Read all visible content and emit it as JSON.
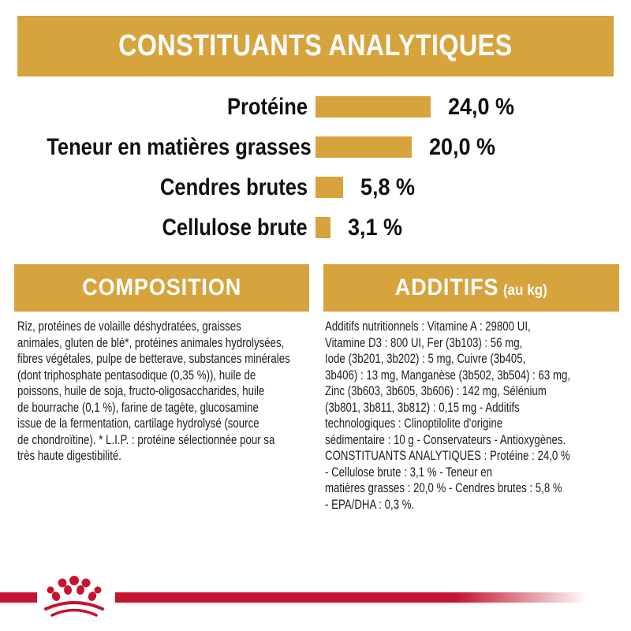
{
  "header": {
    "title": "CONSTITUANTS ANALYTIQUES"
  },
  "constituants": {
    "rows": [
      {
        "label": "Protéine",
        "value": "24,0 %",
        "percent": 24.0
      },
      {
        "label": "Teneur en matières grasses",
        "value": "20,0 %",
        "percent": 20.0
      },
      {
        "label": "Cendres brutes",
        "value": "5,8 %",
        "percent": 5.8
      },
      {
        "label": "Cellulose brute",
        "value": "3,1 %",
        "percent": 3.1
      }
    ]
  },
  "chart_data": {
    "type": "bar",
    "title": "CONSTITUANTS ANALYTIQUES",
    "categories": [
      "Protéine",
      "Teneur en matières grasses",
      "Cendres brutes",
      "Cellulose brute"
    ],
    "values": [
      24.0,
      20.0,
      5.8,
      3.1
    ],
    "value_labels": [
      "24,0 %",
      "20,0 %",
      "5,8 %",
      "3,1 %"
    ],
    "xlabel": "",
    "ylabel": "",
    "orientation": "horizontal",
    "bar_color": "#d7a33d",
    "grid": false,
    "legend": false
  },
  "composition": {
    "header": "COMPOSITION",
    "lines": [
      "Riz, protéines de volaille déshydratées, graisses",
      "animales, gluten de blé*, protéines animales hydrolysées,",
      "fibres végétales, pulpe de betterave, substances minérales",
      "(dont triphosphate pentasodique (0,35 %)), huile de",
      "poissons, huile de soja, fructo-oligosaccharides, huile",
      "de bourrache (0,1 %), farine de tagète, glucosamine",
      "issue de la fermentation, cartilage hydrolysé (source",
      "de chondroïtine). * L.I.P. : protéine sélectionnée pour sa",
      "très haute digestibilité."
    ]
  },
  "additifs": {
    "header": "ADDITIFS",
    "header_suffix": "(au kg)",
    "lines": [
      "Additifs nutritionnels : Vitamine A : 29800 UI,",
      "Vitamine D3 : 800 UI, Fer (3b103) : 56 mg,",
      "Iode (3b201, 3b202) : 5 mg, Cuivre (3b405,",
      "3b406) : 13 mg, Manganèse (3b502, 3b504) : 63 mg,",
      "Zinc (3b603, 3b605, 3b606) : 142 mg, Sélénium",
      "(3b801, 3b811, 3b812) : 0,15 mg - Additifs",
      "technologiques : Clinoptilolite d'origine",
      "sédimentaire : 10 g - Conservateurs - Antioxygènes.",
      "CONSTITUANTS ANALYTIQUES : Protéine : 24,0 %",
      "- Cellulose brute : 3,1 % - Teneur en",
      "matières grasses : 20,0 % - Cendres brutes : 5,8 %",
      "- EPA/DHA : 0,3 %."
    ]
  },
  "footer": {
    "logo": "royal-canin-crown"
  },
  "colors": {
    "gold": "#d7a33d",
    "red": "#c41430",
    "text": "#1d1d1b"
  }
}
